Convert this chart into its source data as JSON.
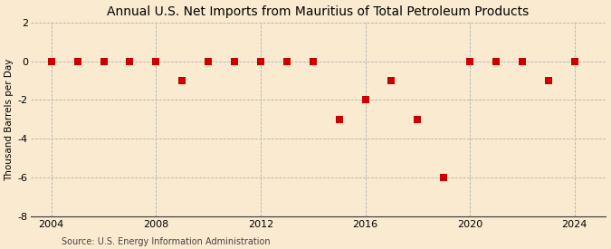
{
  "title": "Annual U.S. Net Imports from Mauritius of Total Petroleum Products",
  "ylabel": "Thousand Barrels per Day",
  "source": "Source: U.S. Energy Information Administration",
  "background_color": "#faebd0",
  "plot_bg_color": "#faebd0",
  "years": [
    2004,
    2005,
    2006,
    2007,
    2008,
    2009,
    2010,
    2011,
    2012,
    2013,
    2014,
    2015,
    2016,
    2017,
    2018,
    2019,
    2020,
    2021,
    2022,
    2023,
    2024
  ],
  "values": [
    0,
    0,
    0,
    0,
    0,
    -1,
    0,
    0,
    0,
    0,
    0,
    -3,
    -2,
    -1,
    -3,
    -6,
    0,
    0,
    0,
    -1,
    0
  ],
  "marker_color": "#cc0000",
  "marker_size": 30,
  "ylim": [
    -8,
    2
  ],
  "yticks": [
    -8,
    -6,
    -4,
    -2,
    0,
    2
  ],
  "xlim": [
    2003.2,
    2025.2
  ],
  "xticks": [
    2004,
    2008,
    2012,
    2016,
    2020,
    2024
  ],
  "grid_color": "#b0b0b0",
  "grid_linestyle": "--",
  "title_fontsize": 10,
  "label_fontsize": 7.5,
  "tick_fontsize": 8,
  "source_fontsize": 7
}
